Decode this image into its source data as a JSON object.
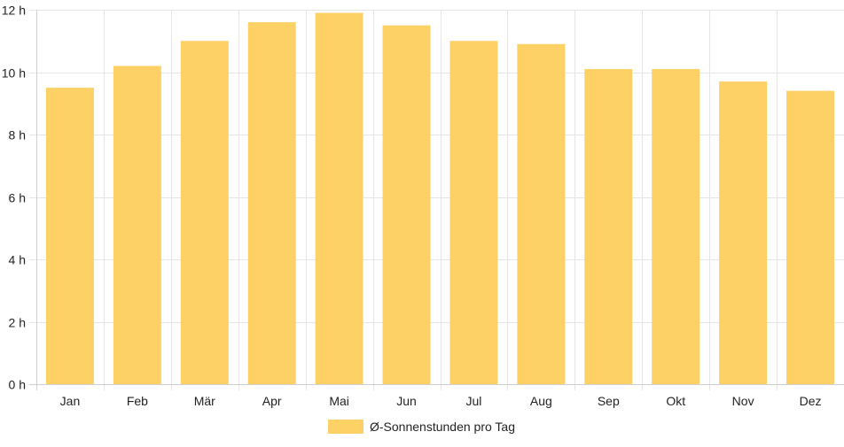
{
  "chart_data": {
    "type": "bar",
    "categories": [
      "Jan",
      "Feb",
      "Mär",
      "Apr",
      "Mai",
      "Jun",
      "Jul",
      "Aug",
      "Sep",
      "Okt",
      "Nov",
      "Dez"
    ],
    "series": [
      {
        "name": "Ø-Sonnenstunden pro Tag",
        "values": [
          9.5,
          10.2,
          11.0,
          11.6,
          11.9,
          11.5,
          11.0,
          10.9,
          10.1,
          10.1,
          9.7,
          9.4
        ],
        "color": "#fdd166"
      }
    ],
    "ylim": [
      0,
      12
    ],
    "yticks": [
      0,
      2,
      4,
      6,
      8,
      10,
      12
    ],
    "ytick_labels": [
      "0 h",
      "2 h",
      "4 h",
      "6 h",
      "8 h",
      "10 h",
      "12 h"
    ],
    "grid": true,
    "legend": "bottom-center"
  }
}
